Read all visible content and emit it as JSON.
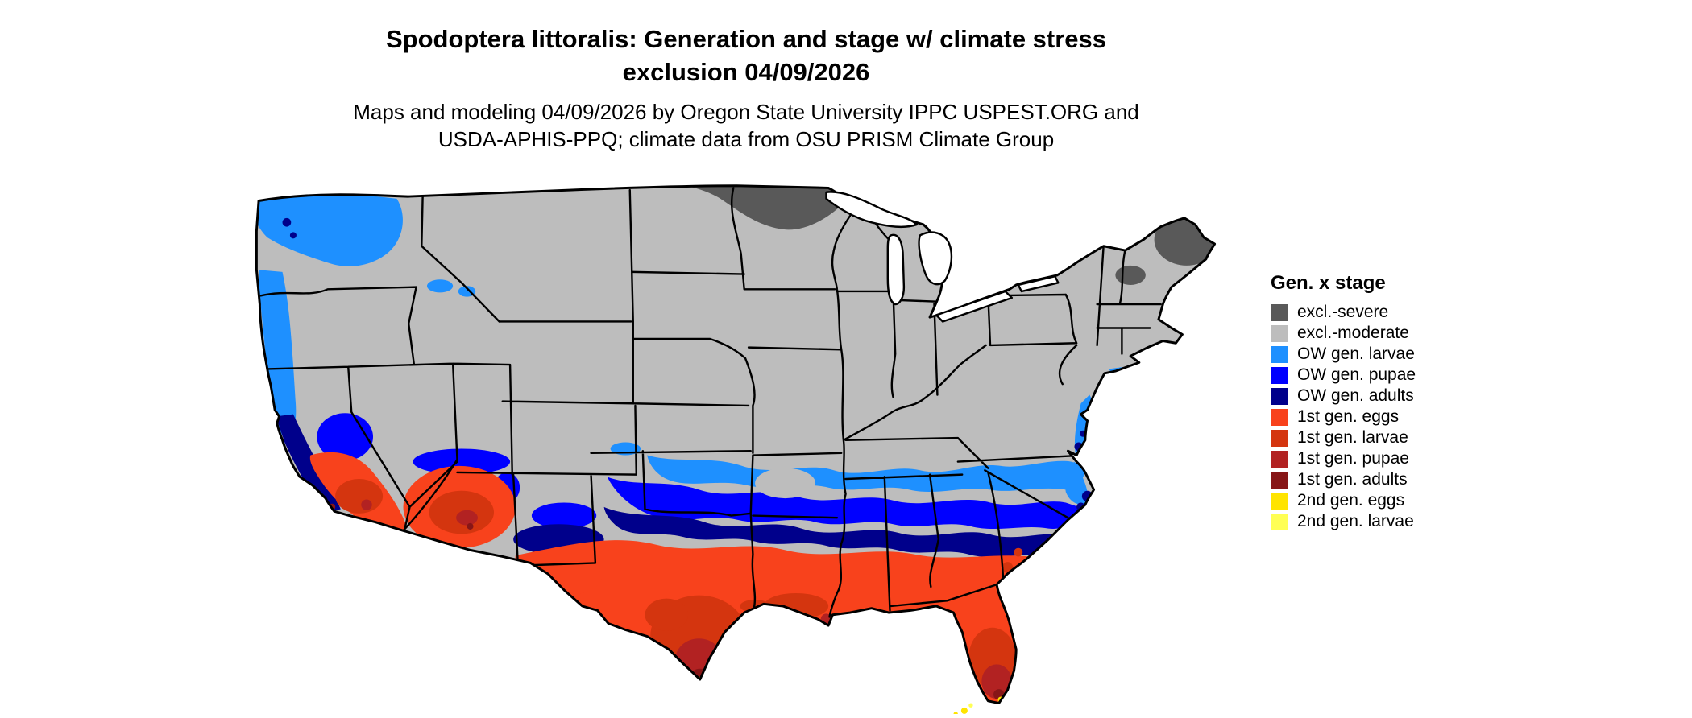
{
  "title": {
    "line1": "Spodoptera littoralis: Generation and stage w/ climate stress",
    "line2": "exclusion 04/09/2026"
  },
  "subtitle": {
    "line1": "Maps and modeling 04/09/2026 by Oregon State University IPPC USPEST.ORG and",
    "line2": "USDA-APHIS-PPQ; climate data from OSU PRISM Climate Group"
  },
  "map": {
    "description": "Continental United States choropleth of Spodoptera littoralis generation and life stage with climate stress exclusion",
    "water_color": "#ffffff",
    "border_color": "#000000",
    "background_color": "#ffffff"
  },
  "legend": {
    "title": "Gen. x stage",
    "items": [
      {
        "key": "excl-severe",
        "label": "excl.-severe",
        "color": "#595959"
      },
      {
        "key": "excl-moderate",
        "label": "excl.-moderate",
        "color": "#BDBDBD"
      },
      {
        "key": "ow-larvae",
        "label": "OW gen. larvae",
        "color": "#1E90FF"
      },
      {
        "key": "ow-pupae",
        "label": "OW gen. pupae",
        "color": "#0000FF"
      },
      {
        "key": "ow-adults",
        "label": "OW gen. adults",
        "color": "#00008B"
      },
      {
        "key": "gen1-eggs",
        "label": "1st gen. eggs",
        "color": "#F8421C"
      },
      {
        "key": "gen1-larvae",
        "label": "1st gen. larvae",
        "color": "#D4350F"
      },
      {
        "key": "gen1-pupae",
        "label": "1st gen. pupae",
        "color": "#B22222"
      },
      {
        "key": "gen1-adults",
        "label": "1st gen. adults",
        "color": "#871617"
      },
      {
        "key": "gen2-eggs",
        "label": "2nd gen. eggs",
        "color": "#FFE400"
      },
      {
        "key": "gen2-larvae",
        "label": "2nd gen. larvae",
        "color": "#FFFF54"
      }
    ]
  }
}
